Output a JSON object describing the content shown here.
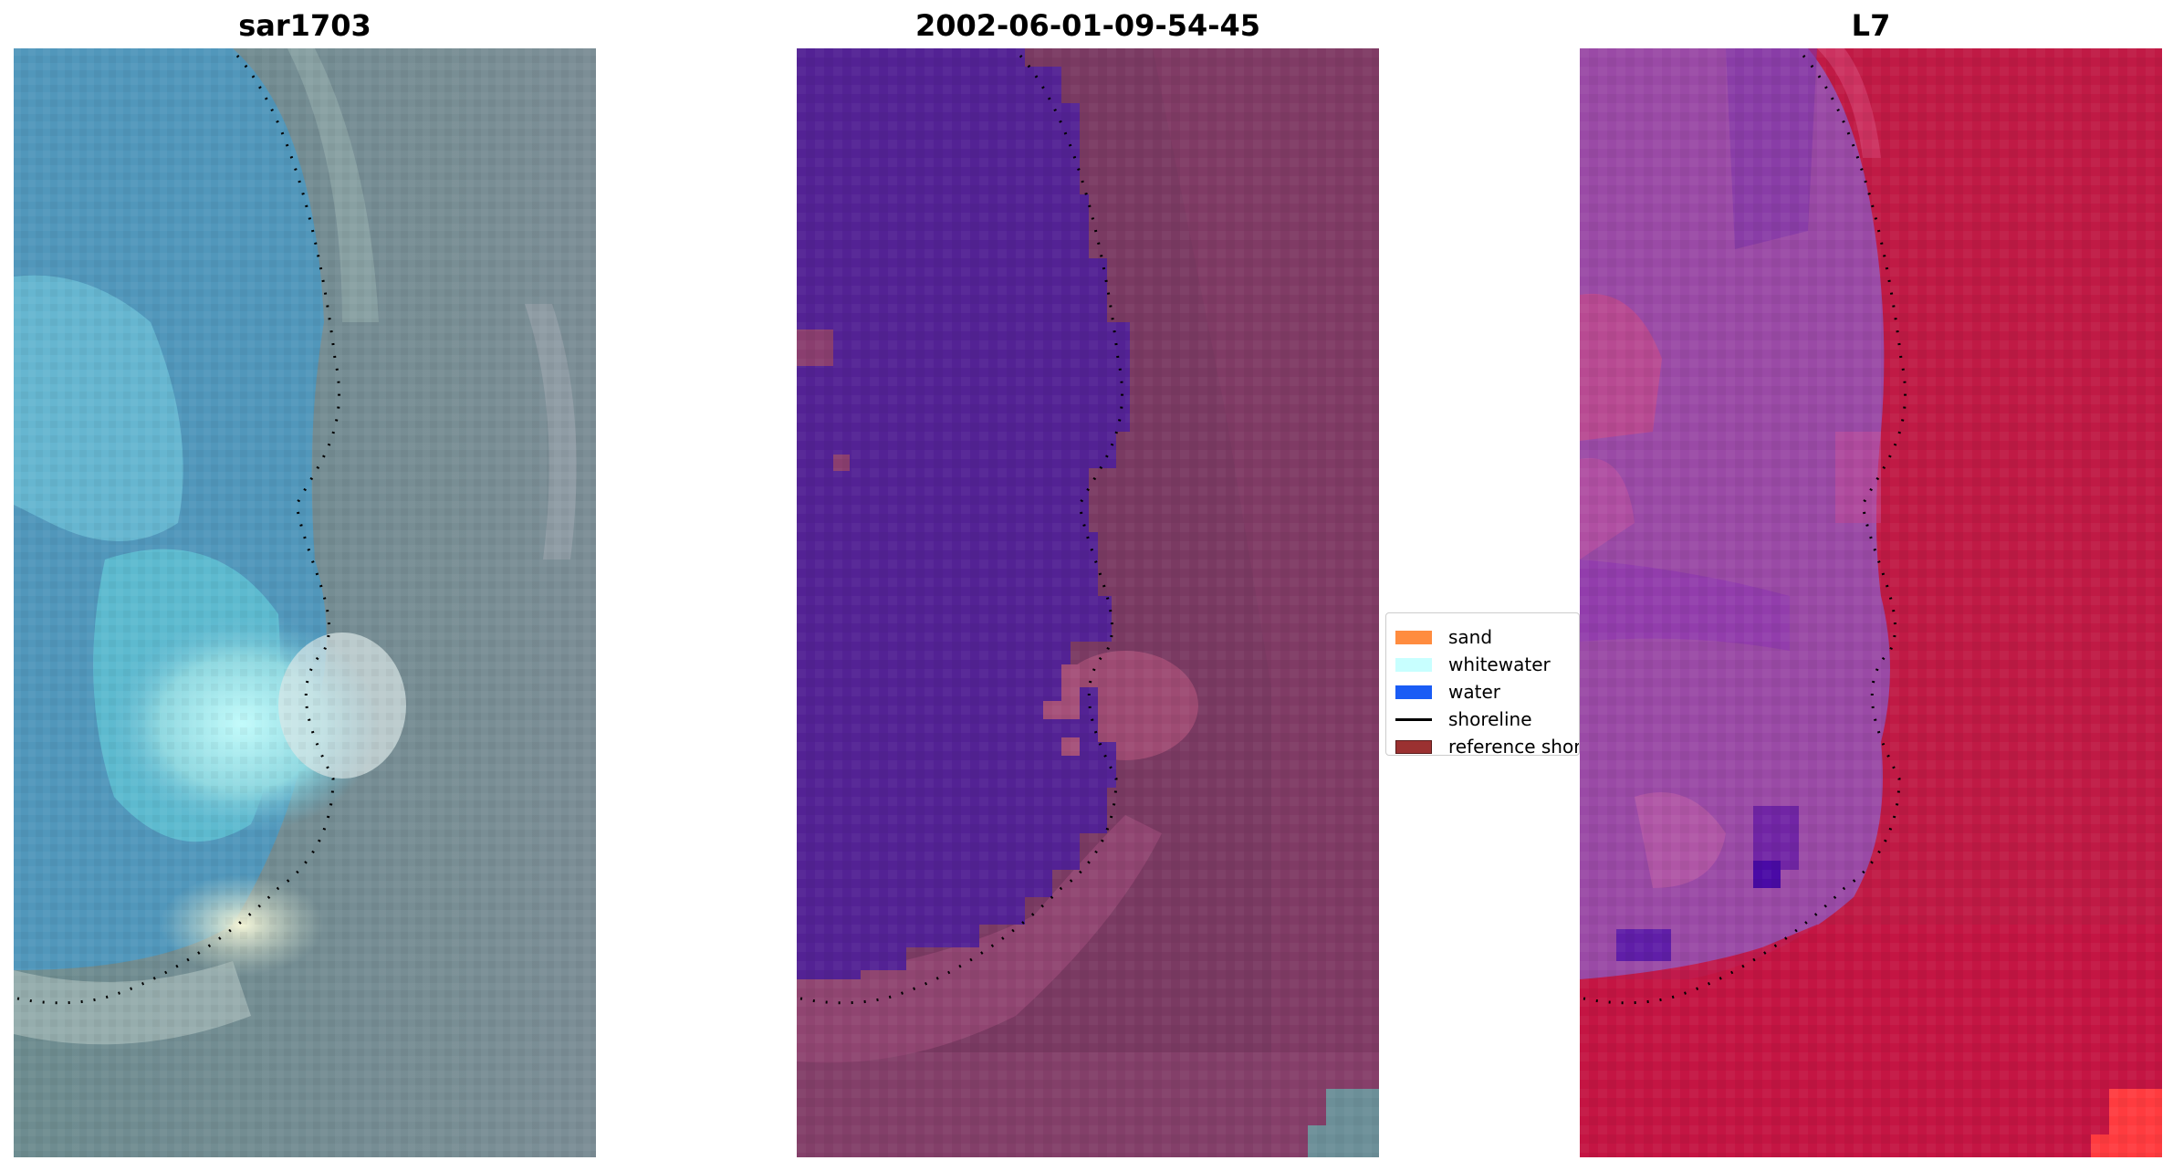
{
  "panels": [
    {
      "title": "sar1703",
      "kind": "rgb-image"
    },
    {
      "title": "2002-06-01-09-54-45",
      "kind": "classified-image"
    },
    {
      "title": "L7",
      "kind": "false-color-image"
    }
  ],
  "legend": {
    "items": [
      {
        "label": "sand",
        "color": "#ff8c3f",
        "marker": "patch"
      },
      {
        "label": "whitewater",
        "color": "#c8ffff",
        "marker": "patch"
      },
      {
        "label": "water",
        "color": "#1a5cf5",
        "marker": "patch"
      },
      {
        "label": "shoreline",
        "color": "#000000",
        "marker": "line"
      },
      {
        "label": "reference shoreline",
        "color": "#9b3131",
        "marker": "patch"
      }
    ]
  },
  "colors": {
    "panel1_land": "#6f8e93",
    "panel1_water": "#4f98bd",
    "panel1_whitewater": "#b7f2f1",
    "panel2_water_class": "#522294",
    "panel2_land": "#7b3a63",
    "panel3_land": "#c01a45",
    "panel3_water": "#9447a7",
    "shoreline_dots": "#000000"
  }
}
